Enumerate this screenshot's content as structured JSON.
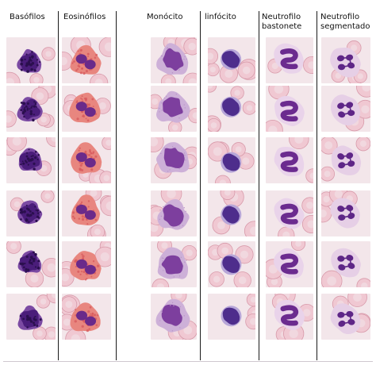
{
  "columns": [
    {
      "id": "basofilos",
      "label": "Basófilos",
      "type": "basophil",
      "colors": {
        "nucleus": "#4a1d7a",
        "cytoplasm": "#7b4aa3",
        "granule": "#2b0f4e"
      }
    },
    {
      "id": "eosinofilos",
      "label": "Eosinófilos",
      "type": "eosinophil",
      "colors": {
        "nucleus": "#6a2a8a",
        "cytoplasm": "#e8867f",
        "granule": "#d75a5e"
      }
    },
    {
      "id": "monocito",
      "label": "Monócito",
      "type": "monocyte",
      "colors": {
        "nucleus": "#7d3f9e",
        "cytoplasm": "#cdb0d8",
        "granule": "#b894c7"
      }
    },
    {
      "id": "linfocito",
      "label": "linfócito",
      "type": "lymphocyte",
      "colors": {
        "nucleus": "#4e2d8c",
        "cytoplasm": "#b7a6d8",
        "granule": "#3c1f70"
      }
    },
    {
      "id": "neutrofilo-bastonete",
      "label": "Neutrofilo\nbastonete",
      "type": "band",
      "colors": {
        "nucleus": "#6b2b8f",
        "cytoplasm": "#e9d3ea",
        "granule": "#c9a3d0"
      }
    },
    {
      "id": "neutrofilo-segmentado",
      "label": "Neutrofilo\nsegmentado",
      "type": "segmented",
      "colors": {
        "nucleus": "#5e2687",
        "cytoplasm": "#e6cfe6",
        "granule": "#c8a2cf"
      }
    }
  ],
  "background": {
    "plasma": "#f3e6ea",
    "rbc_fill": "#f0c8d2",
    "rbc_edge": "#d89aaa"
  }
}
